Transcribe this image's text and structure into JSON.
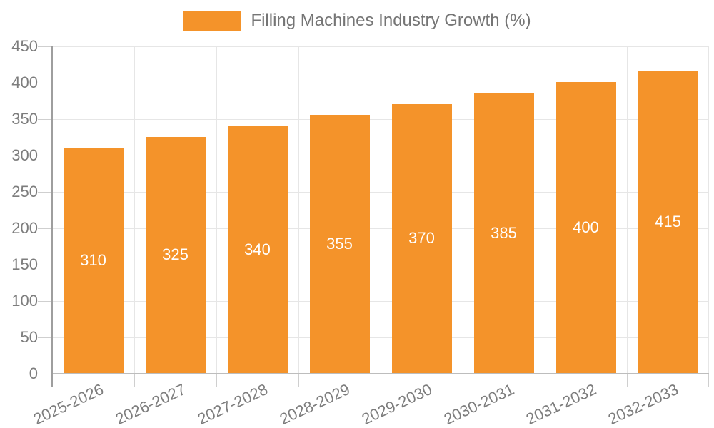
{
  "legend": {
    "label": "Filling Machines Industry Growth (%)",
    "swatch_color": "#F4932A"
  },
  "chart_data": {
    "type": "bar",
    "title": "Filling Machines Industry Growth (%)",
    "categories": [
      "2025-2026",
      "2026-2027",
      "2027-2028",
      "2028-2029",
      "2029-2030",
      "2030-2031",
      "2031-2032",
      "2032-2033"
    ],
    "values": [
      310,
      325,
      340,
      355,
      370,
      385,
      400,
      415
    ],
    "xlabel": "",
    "ylabel": "",
    "ylim": [
      0,
      450
    ],
    "ytick_step": 50,
    "yticks": [
      0,
      50,
      100,
      150,
      200,
      250,
      300,
      350,
      400,
      450
    ],
    "grid": true,
    "legend_position": "top-center",
    "value_labels": "centered-inside-bars",
    "x_label_rotation_deg": -25,
    "colors": {
      "bar": "#F4932A",
      "value_label": "#FFFFFF",
      "axis_text": "#7D7D7D",
      "legend_text": "#757575",
      "gridline": "#E6E6E6",
      "y_axis_line": "#9E9E9E",
      "x_axis_line": "#BDBDBD",
      "tick": "#CFCFCF",
      "background": "#FFFFFF"
    }
  }
}
